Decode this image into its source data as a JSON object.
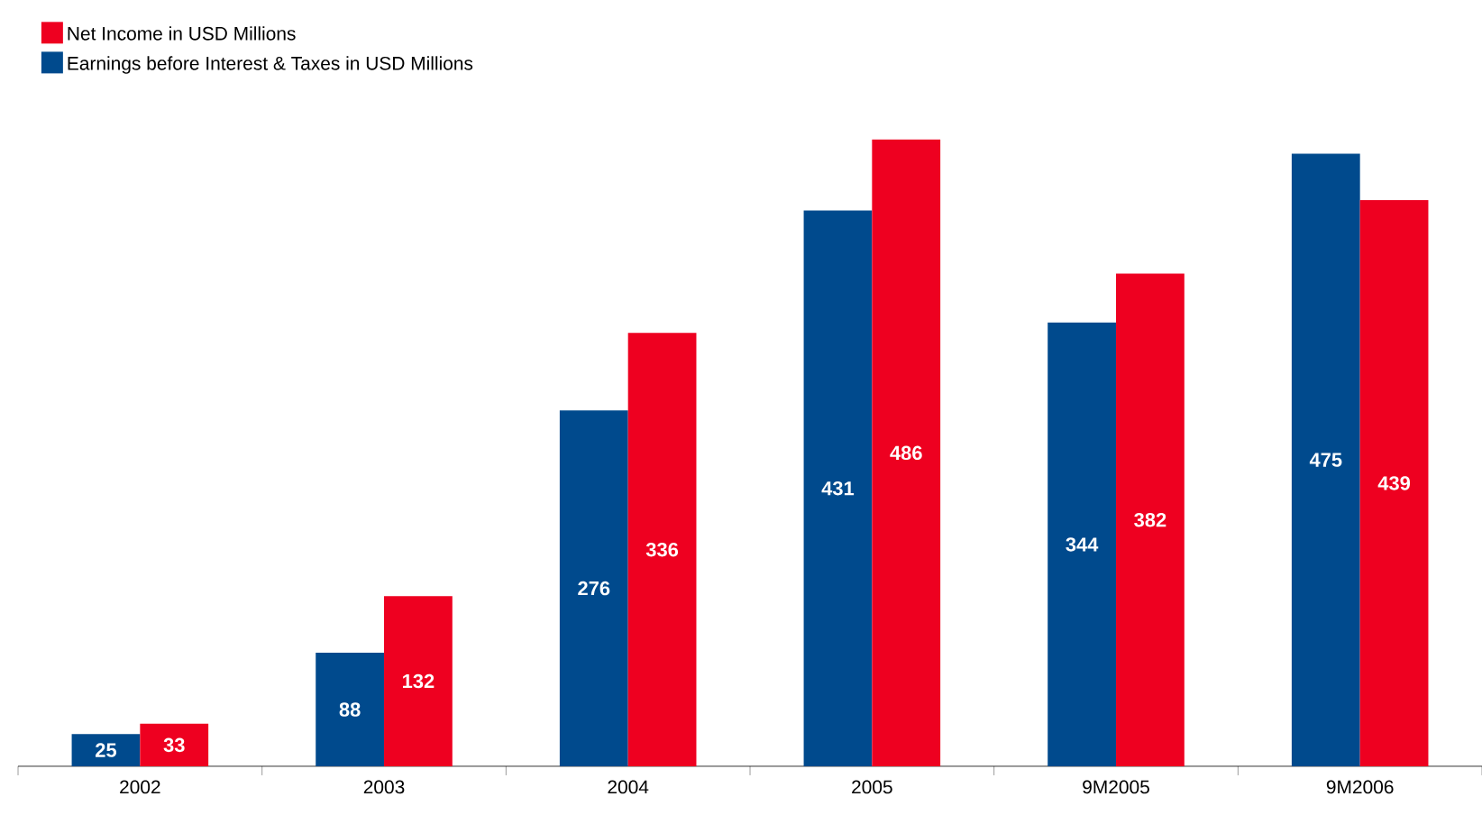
{
  "chart_data": {
    "type": "bar",
    "categories": [
      "2002",
      "2003",
      "2004",
      "2005",
      "9M2005",
      "9M2006"
    ],
    "series": [
      {
        "name": "Net Income in USD Millions",
        "color": "#ee0020",
        "values": [
          33,
          132,
          336,
          486,
          382,
          439
        ]
      },
      {
        "name": "Earnings before Interest & Taxes in USD Millions",
        "color": "#004a8d",
        "values": [
          25,
          88,
          276,
          431,
          344,
          475
        ]
      }
    ],
    "data_labels": true,
    "legend": "top left"
  }
}
